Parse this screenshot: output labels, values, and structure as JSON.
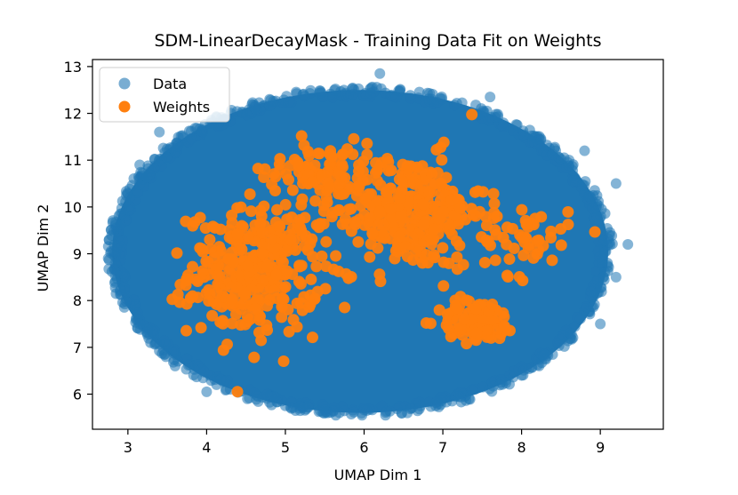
{
  "chart_data": {
    "type": "scatter",
    "title": "SDM-LinearDecayMask - Training Data Fit on Weights",
    "xlabel": "UMAP Dim 1",
    "ylabel": "UMAP Dim 2",
    "xlim": [
      2.55,
      9.8
    ],
    "ylim": [
      5.25,
      13.15
    ],
    "xticks": [
      "3",
      "4",
      "5",
      "6",
      "7",
      "8",
      "9"
    ],
    "yticks": [
      "6",
      "7",
      "8",
      "9",
      "10",
      "11",
      "12",
      "13"
    ],
    "grid": false,
    "legend_position": "top-left",
    "series": [
      {
        "name": "Data",
        "color": "#1f77b4",
        "alpha": 0.55,
        "cloud": {
          "center": [
            5.95,
            9.05
          ],
          "radius_x": 3.15,
          "radius_y": 3.45
        },
        "points": [
          [
            6.2,
            12.85
          ],
          [
            2.75,
            8.9
          ],
          [
            9.35,
            9.2
          ],
          [
            3.15,
            10.9
          ],
          [
            9.2,
            10.5
          ],
          [
            2.85,
            9.55
          ],
          [
            3.15,
            7.5
          ],
          [
            9.0,
            7.5
          ],
          [
            3.6,
            6.6
          ],
          [
            8.8,
            11.2
          ],
          [
            4.0,
            6.05
          ],
          [
            6.0,
            5.7
          ],
          [
            8.0,
            6.4
          ],
          [
            4.8,
            12.3
          ],
          [
            7.6,
            12.35
          ],
          [
            2.9,
            8.2
          ],
          [
            9.2,
            8.5
          ],
          [
            5.0,
            5.75
          ],
          [
            7.2,
            5.95
          ],
          [
            3.4,
            11.6
          ]
        ]
      },
      {
        "name": "Weights",
        "color": "#ff7f0e",
        "alpha": 0.95,
        "point_count": 900,
        "clusters": [
          {
            "center": [
              4.6,
              8.6
            ],
            "spread": [
              0.75,
              1.2
            ],
            "count": 330
          },
          {
            "center": [
              6.55,
              9.9
            ],
            "spread": [
              0.9,
              1.1
            ],
            "count": 330
          },
          {
            "center": [
              7.45,
              7.55
            ],
            "spread": [
              0.45,
              0.4
            ],
            "count": 110
          },
          {
            "center": [
              5.4,
              10.8
            ],
            "spread": [
              0.6,
              0.6
            ],
            "count": 80
          },
          {
            "center": [
              8.05,
              9.3
            ],
            "spread": [
              0.5,
              0.7
            ],
            "count": 50
          }
        ]
      }
    ]
  }
}
